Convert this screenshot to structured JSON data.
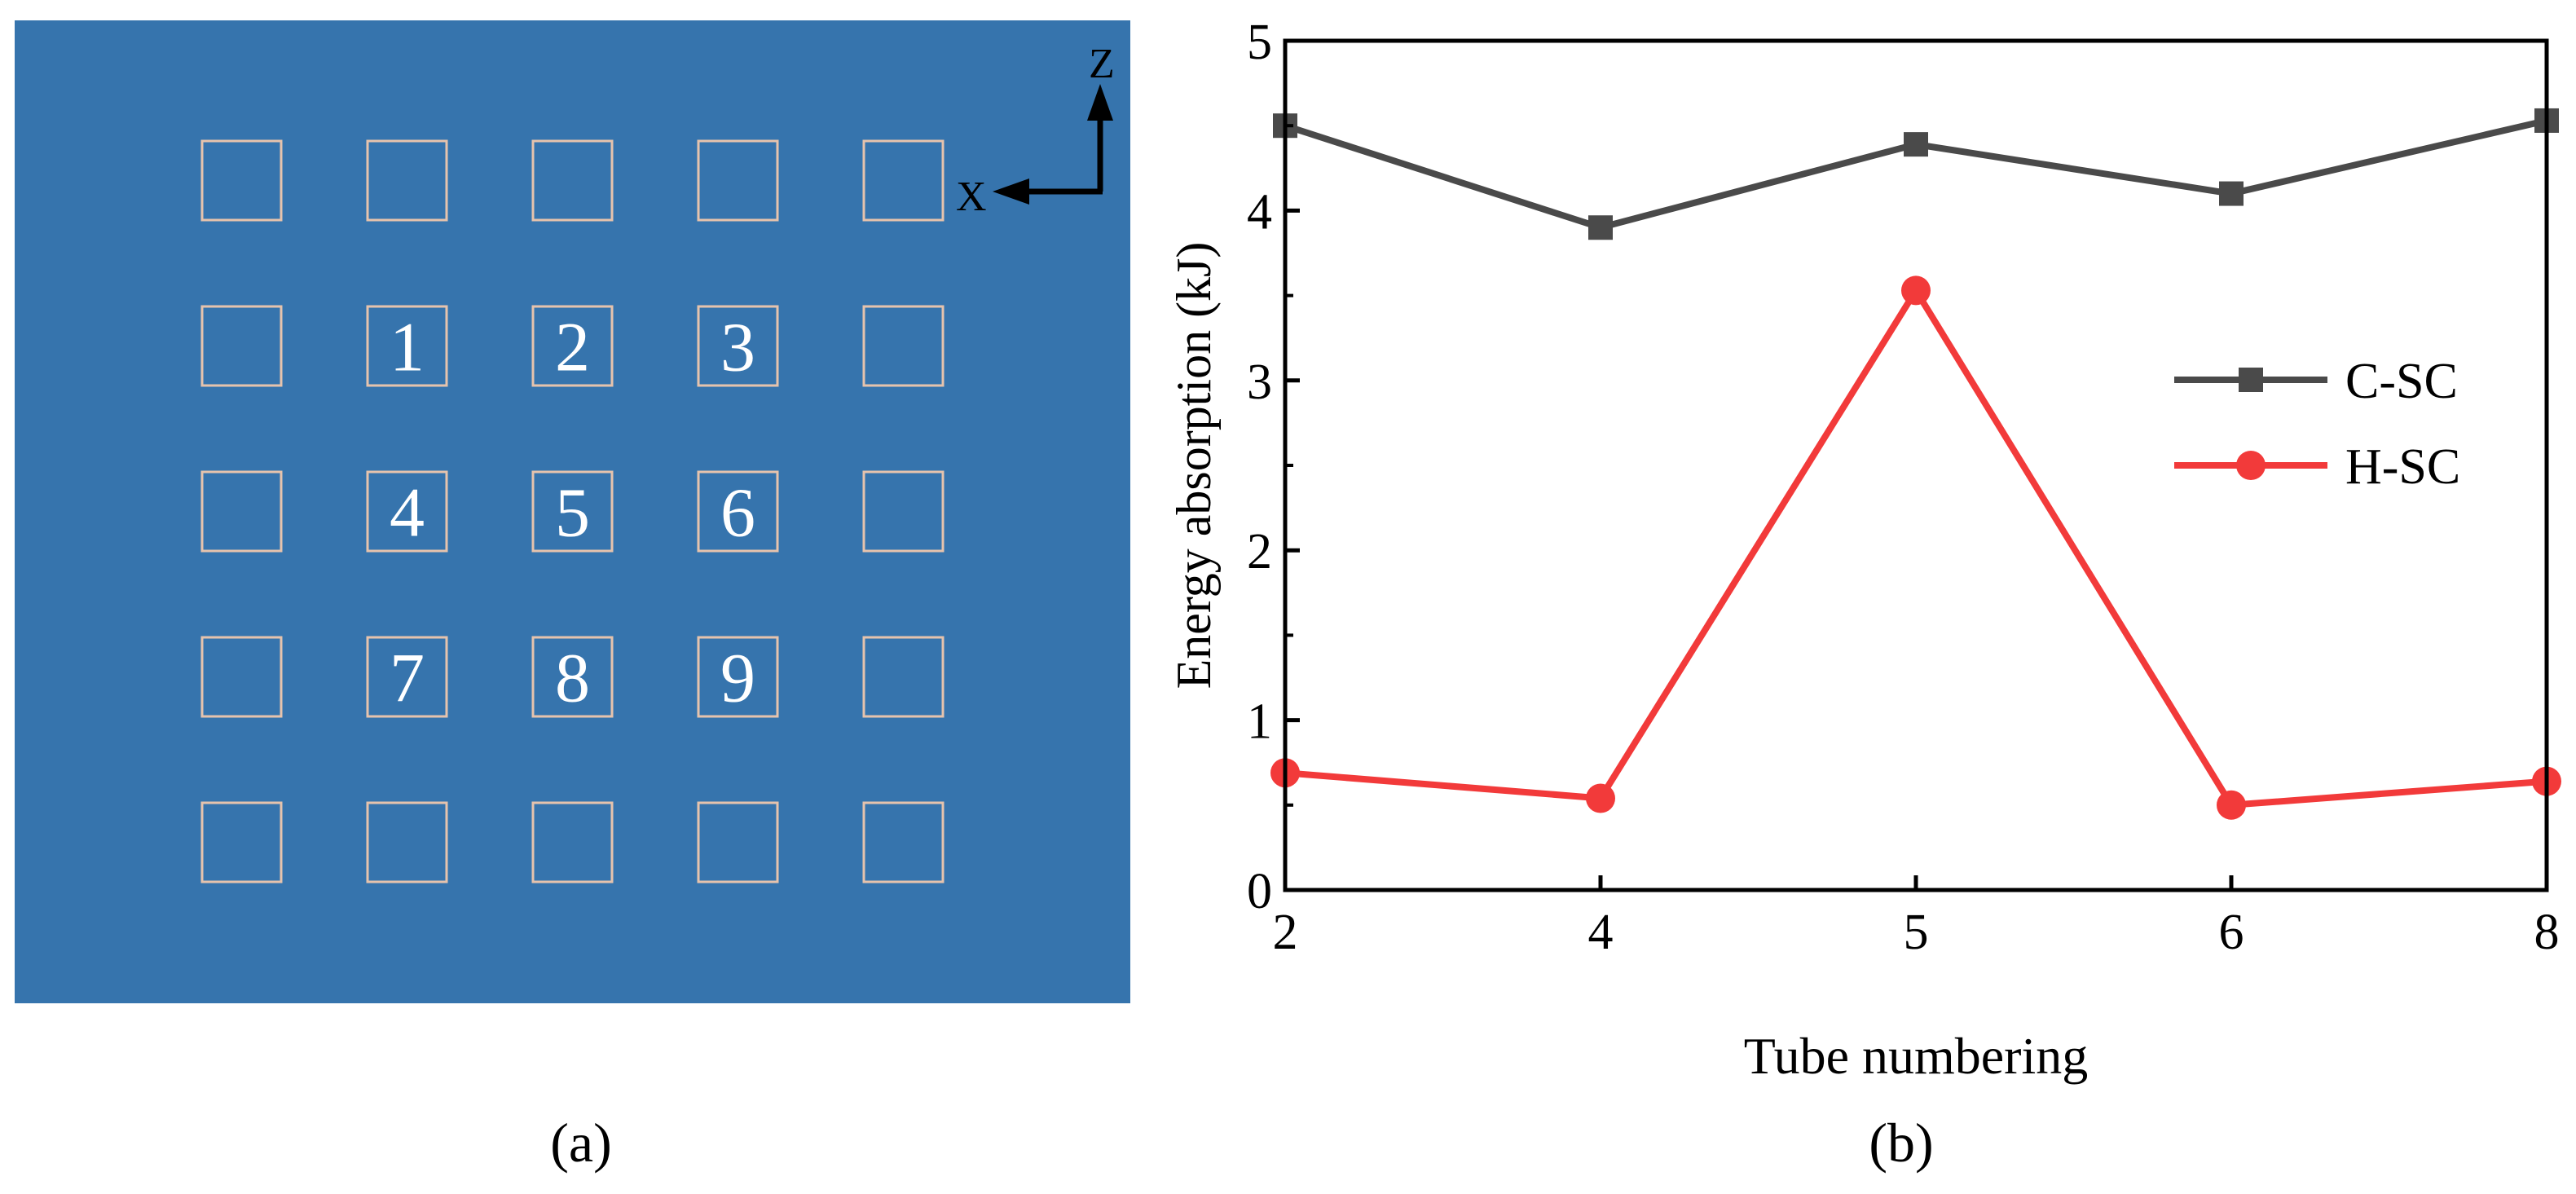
{
  "panel_a": {
    "caption": "(a)",
    "background_color": "#3674ad",
    "square_color": "#e6c3ad",
    "axis_labels": {
      "x": "X",
      "z": "Z"
    },
    "grid_rows": 5,
    "grid_cols": 5,
    "numbered_tubes": [
      "1",
      "2",
      "3",
      "4",
      "5",
      "6",
      "7",
      "8",
      "9"
    ]
  },
  "panel_b": {
    "caption": "(b)"
  },
  "chart_data": {
    "type": "line",
    "title": "",
    "xlabel": "Tube numbering",
    "ylabel": "Energy absorption (kJ)",
    "categories": [
      "2",
      "4",
      "5",
      "6",
      "8"
    ],
    "ylim": [
      0,
      5
    ],
    "yticks": [
      "0",
      "1",
      "2",
      "3",
      "4",
      "5"
    ],
    "grid": false,
    "legend_position": "right",
    "series": [
      {
        "name": "C-SC",
        "marker": "square",
        "color": "#4a4a4a",
        "values": [
          4.5,
          3.9,
          4.39,
          4.1,
          4.53
        ]
      },
      {
        "name": "H-SC",
        "marker": "circle",
        "color": "#f23a3a",
        "values": [
          0.69,
          0.54,
          3.53,
          0.5,
          0.64
        ]
      }
    ]
  }
}
